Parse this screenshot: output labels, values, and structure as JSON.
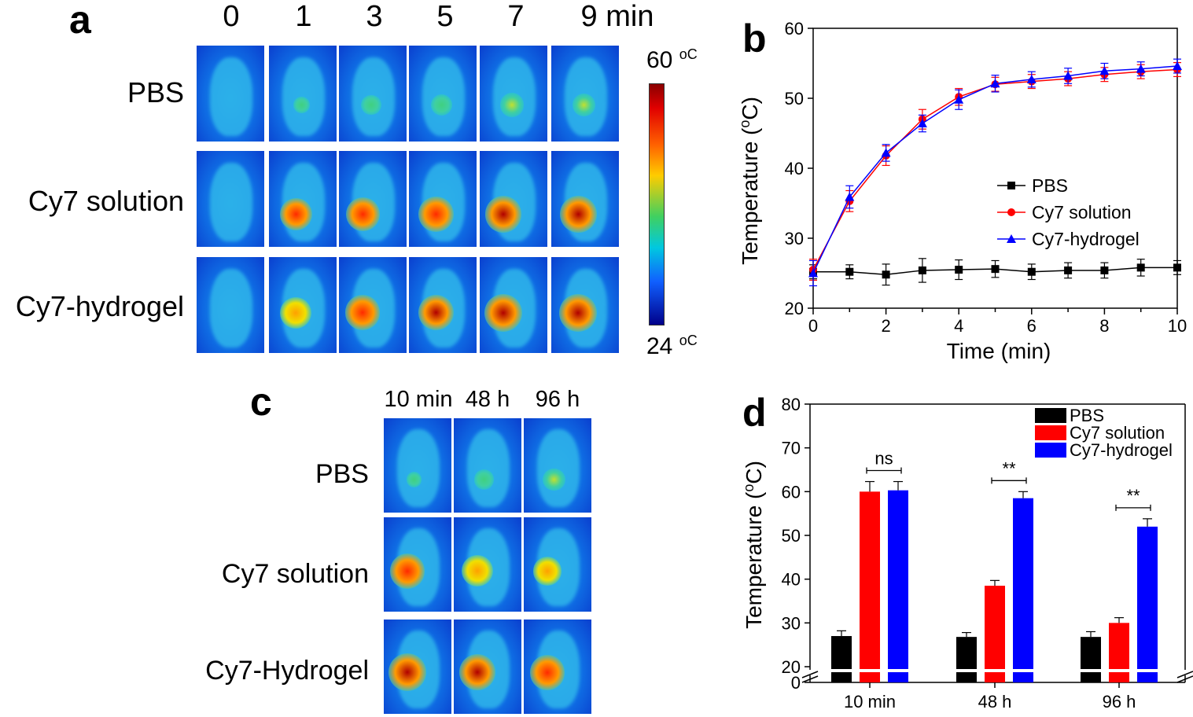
{
  "panel_a": {
    "letter": "a",
    "time_labels": [
      "0",
      "1",
      "3",
      "5",
      "7",
      "9 min"
    ],
    "rows": [
      {
        "label": "PBS",
        "spot_levels": [
          0,
          0.15,
          0.3,
          0.35,
          0.45,
          0.4
        ]
      },
      {
        "label": "Cy7 solution",
        "spot_levels": [
          0,
          0.8,
          0.85,
          0.9,
          0.95,
          0.97
        ]
      },
      {
        "label": "Cy7-hydrogel",
        "spot_levels": [
          0,
          0.75,
          0.9,
          0.92,
          1.0,
          1.0
        ]
      }
    ],
    "colorbar": {
      "max_label": "60",
      "min_label": "24",
      "unit": "oC"
    }
  },
  "panel_c": {
    "letter": "c",
    "time_labels": [
      "10 min",
      "48 h",
      "96 h"
    ],
    "rows": [
      {
        "label": "PBS",
        "spot_levels": [
          0.1,
          0.3,
          0.4
        ]
      },
      {
        "label": "Cy7 solution",
        "spot_levels": [
          0.9,
          0.75,
          0.65
        ]
      },
      {
        "label": "Cy7-Hydrogel",
        "spot_levels": [
          1.0,
          0.95,
          0.9
        ]
      }
    ]
  },
  "chart_data": [
    {
      "panel": "b",
      "type": "line",
      "xlabel": "Time (min)",
      "ylabel": "Temperature (oC)",
      "xlim": [
        0,
        10
      ],
      "ylim": [
        20,
        60
      ],
      "xticks": [
        0,
        2,
        4,
        6,
        8,
        10
      ],
      "yticks": [
        20,
        30,
        40,
        50,
        60
      ],
      "x": [
        0,
        1,
        2,
        3,
        4,
        5,
        6,
        7,
        8,
        9,
        10
      ],
      "legend_position": "center-right",
      "series": [
        {
          "name": "PBS",
          "color": "#000000",
          "marker": "square",
          "values": [
            25.2,
            25.2,
            24.8,
            25.4,
            25.5,
            25.6,
            25.2,
            25.4,
            25.4,
            25.8,
            25.8
          ],
          "errors": [
            1.0,
            1.0,
            1.5,
            1.7,
            1.4,
            1.2,
            1.1,
            1.1,
            1.1,
            1.2,
            1.0
          ]
        },
        {
          "name": "Cy7 solution",
          "color": "#ff0000",
          "marker": "circle",
          "values": [
            25.5,
            35.3,
            41.8,
            47.0,
            50.2,
            52.0,
            52.4,
            52.8,
            53.4,
            53.8,
            54.1
          ],
          "errors": [
            1.5,
            1.5,
            1.4,
            1.4,
            1.2,
            1.0,
            1.0,
            1.0,
            1.0,
            1.0,
            1.0
          ]
        },
        {
          "name": "Cy7-hydrogel",
          "color": "#0000ff",
          "marker": "triangle",
          "values": [
            25.0,
            35.9,
            42.2,
            46.4,
            49.8,
            52.1,
            52.7,
            53.2,
            53.9,
            54.2,
            54.6
          ],
          "errors": [
            1.8,
            1.6,
            1.2,
            1.2,
            1.4,
            1.2,
            1.1,
            1.1,
            1.1,
            1.0,
            1.0
          ]
        }
      ]
    },
    {
      "panel": "d",
      "type": "bar",
      "ylabel": "Temperature (oC)",
      "categories": [
        "10 min",
        "48 h",
        "96 h"
      ],
      "ylim": [
        0,
        80
      ],
      "axis_break": [
        0,
        20
      ],
      "yticks": [
        0,
        20,
        30,
        40,
        50,
        60,
        70,
        80
      ],
      "legend_position": "top-right",
      "series": [
        {
          "name": "PBS",
          "color": "#000000",
          "values": [
            27.0,
            26.8,
            26.8
          ],
          "errors": [
            1.2,
            1.0,
            1.2
          ]
        },
        {
          "name": "Cy7 solution",
          "color": "#ff0000",
          "values": [
            60.0,
            38.5,
            30.0
          ],
          "errors": [
            2.3,
            1.2,
            1.2
          ]
        },
        {
          "name": "Cy7-hydrogel",
          "color": "#0000ff",
          "values": [
            60.3,
            58.5,
            52.0
          ],
          "errors": [
            2.0,
            1.5,
            1.8
          ]
        }
      ],
      "significance": [
        {
          "category": "10 min",
          "label": "ns"
        },
        {
          "category": "48 h",
          "label": "**"
        },
        {
          "category": "96 h",
          "label": "**"
        }
      ]
    }
  ]
}
